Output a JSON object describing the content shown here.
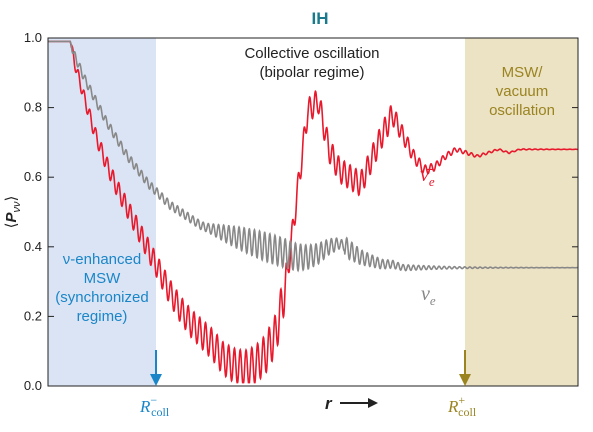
{
  "chart_data": {
    "type": "line",
    "title": "IH",
    "ylabel": "⟨P_νν⟩",
    "xlabel": "r",
    "ylim": [
      0.0,
      1.0
    ],
    "yticks": [
      "0.0",
      "0.2",
      "0.4",
      "0.6",
      "0.8",
      "1.0"
    ],
    "x_markers": [
      {
        "name": "R",
        "sup": "−",
        "sub": "coll",
        "color": "#1a86c8"
      },
      {
        "name": "R",
        "sup": "+",
        "sub": "coll",
        "color": "#9a8420"
      }
    ],
    "regions": [
      {
        "name": "synchronized",
        "color": "#dbe4f4",
        "lines": [
          "ν-enhanced",
          "MSW",
          "(synchronized",
          "regime)"
        ],
        "text_color": "#1a86c8"
      },
      {
        "name": "mid",
        "lines": [
          "Collective oscillation",
          "(bipolar regime)"
        ],
        "text_color": "#222222"
      },
      {
        "name": "msw",
        "color": "#ece2c4",
        "lines": [
          "MSW/",
          "vacuum",
          "oscillation"
        ],
        "text_color": "#9a8420"
      }
    ],
    "series": [
      {
        "name": "ν̄_e",
        "color": "#e8192c",
        "x": [
          0.0,
          0.42,
          0.5,
          0.7,
          0.9,
          1.1,
          1.3,
          1.5,
          1.7,
          1.9,
          2.1,
          2.3,
          2.5,
          2.7,
          2.9,
          3.1,
          3.3,
          3.5,
          3.7,
          3.9,
          4.1,
          4.3,
          4.5,
          4.7,
          4.9,
          5.1,
          5.3,
          5.5,
          5.7,
          5.9,
          6.1,
          6.3,
          6.5,
          6.7,
          6.9,
          7.1,
          7.3,
          7.5,
          7.7,
          7.9,
          8.1,
          8.3,
          8.5,
          8.7,
          8.9,
          9.1,
          9.3,
          9.5,
          9.7,
          10.0
        ],
        "y": [
          0.99,
          0.99,
          0.93,
          0.82,
          0.72,
          0.64,
          0.57,
          0.51,
          0.45,
          0.39,
          0.33,
          0.27,
          0.22,
          0.18,
          0.15,
          0.12,
          0.08,
          0.06,
          0.05,
          0.06,
          0.09,
          0.15,
          0.3,
          0.55,
          0.79,
          0.82,
          0.68,
          0.62,
          0.6,
          0.58,
          0.65,
          0.72,
          0.78,
          0.72,
          0.66,
          0.62,
          0.63,
          0.66,
          0.68,
          0.67,
          0.66,
          0.67,
          0.68,
          0.67,
          0.68,
          0.68,
          0.68,
          0.68,
          0.68,
          0.68
        ]
      },
      {
        "name": "ν_e",
        "color": "#888888",
        "x": [
          0.0,
          0.42,
          0.5,
          0.7,
          0.9,
          1.1,
          1.3,
          1.5,
          1.7,
          1.9,
          2.1,
          2.3,
          2.5,
          2.7,
          2.9,
          3.1,
          3.3,
          3.5,
          3.7,
          3.9,
          4.1,
          4.3,
          4.5,
          4.7,
          4.9,
          5.1,
          5.3,
          5.5,
          5.7,
          5.9,
          6.1,
          6.3,
          6.5,
          6.7,
          6.9,
          7.1,
          7.3,
          7.5,
          7.7,
          7.9,
          8.1,
          8.3,
          8.5,
          8.7,
          8.9,
          9.1,
          9.3,
          9.5,
          9.7,
          10.0
        ],
        "y": [
          0.99,
          0.99,
          0.95,
          0.88,
          0.82,
          0.76,
          0.71,
          0.66,
          0.62,
          0.58,
          0.55,
          0.52,
          0.5,
          0.48,
          0.46,
          0.45,
          0.44,
          0.43,
          0.42,
          0.41,
          0.4,
          0.39,
          0.38,
          0.37,
          0.37,
          0.38,
          0.4,
          0.41,
          0.39,
          0.37,
          0.36,
          0.35,
          0.35,
          0.34,
          0.34,
          0.34,
          0.34,
          0.34,
          0.34,
          0.34,
          0.34,
          0.34,
          0.34,
          0.34,
          0.34,
          0.34,
          0.34,
          0.34,
          0.34,
          0.34
        ]
      }
    ]
  }
}
